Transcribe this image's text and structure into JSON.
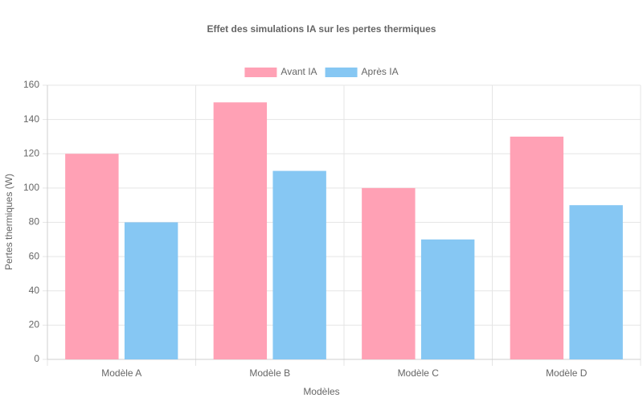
{
  "chart_data": {
    "type": "bar",
    "title": "Effet des simulations IA sur les pertes thermiques",
    "categories": [
      "Modèle A",
      "Modèle B",
      "Modèle C",
      "Modèle D"
    ],
    "series": [
      {
        "name": "Avant IA",
        "color": "#ffa1b5",
        "values": [
          120,
          150,
          100,
          130
        ]
      },
      {
        "name": "Après IA",
        "color": "#86c7f3",
        "values": [
          80,
          110,
          70,
          90
        ]
      }
    ],
    "x_label": "Modèles",
    "y_label": "Pertes thermiques (W)",
    "ylim": [
      0,
      160
    ],
    "yticks": [
      0,
      20,
      40,
      60,
      80,
      100,
      120,
      140,
      160
    ],
    "grid": true,
    "legend": "top"
  }
}
